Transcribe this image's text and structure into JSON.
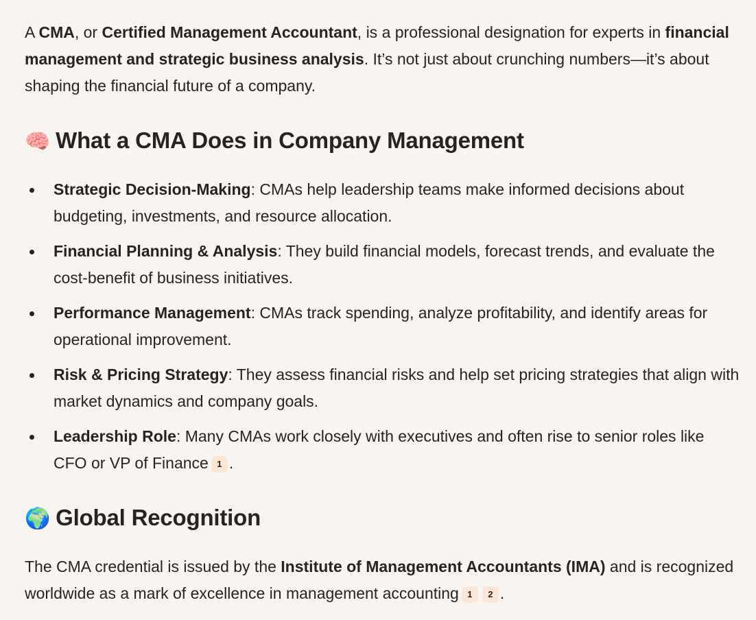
{
  "colors": {
    "background": "#f8f4f1",
    "text": "#262320",
    "citation_badge": "#fbe6d6"
  },
  "intro": [
    {
      "t": "A ",
      "b": false
    },
    {
      "t": "CMA",
      "b": true
    },
    {
      "t": ", or ",
      "b": false
    },
    {
      "t": "Certified Management Accountant",
      "b": true
    },
    {
      "t": ", is a professional designation for experts in ",
      "b": false
    },
    {
      "t": "financial management and strategic business analysis",
      "b": true
    },
    {
      "t": ". It’s not just about crunching numbers—it’s about shaping the financial future of a company.",
      "b": false
    }
  ],
  "section1": {
    "emoji": "🧠",
    "icon": "brain-icon",
    "title": "What a CMA Does in Company Management",
    "items": [
      {
        "label": "Strategic Decision-Making",
        "text": ": CMAs help leadership teams make informed decisions about budgeting, investments, and resource allocation.",
        "cites": []
      },
      {
        "label": "Financial Planning & Analysis",
        "text": ": They build financial models, forecast trends, and evaluate the cost-benefit of business initiatives.",
        "cites": []
      },
      {
        "label": "Performance Management",
        "text": ": CMAs track spending, analyze profitability, and identify areas for operational improvement.",
        "cites": []
      },
      {
        "label": "Risk & Pricing Strategy",
        "text": ": They assess financial risks and help set pricing strategies that align with market dynamics and company goals.",
        "cites": []
      },
      {
        "label": "Leadership Role",
        "text": ": Many CMAs work closely with executives and often rise to senior roles like CFO or VP of Finance",
        "cites": [
          "1"
        ],
        "end": "."
      }
    ]
  },
  "section2": {
    "emoji": "🌍",
    "icon": "globe-icon",
    "title": "Global Recognition",
    "para": [
      {
        "t": "The CMA credential is issued by the ",
        "b": false
      },
      {
        "t": "Institute of Management Accountants (IMA)",
        "b": true
      },
      {
        "t": " and is recognized worldwide as a mark of excellence in management accounting",
        "b": false
      }
    ],
    "cites": [
      "1",
      "2"
    ],
    "end": "."
  }
}
